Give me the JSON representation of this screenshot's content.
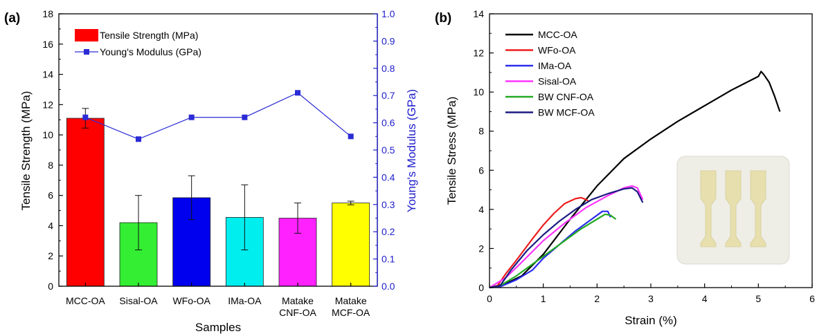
{
  "panels": {
    "a": "(a)",
    "b": "(b)"
  },
  "chart_data": [
    {
      "type": "bar",
      "categories": [
        "MCC-OA",
        "Sisal-OA",
        "WFo-OA",
        "IMa-OA",
        "Matake CNF-OA",
        "Matake MCF-OA"
      ],
      "category_lines": [
        [
          "MCC-OA"
        ],
        [
          "Sisal-OA"
        ],
        [
          "WFo-OA"
        ],
        [
          "IMa-OA"
        ],
        [
          "Matake",
          "CNF-OA"
        ],
        [
          "Matake",
          "MCF-OA"
        ]
      ],
      "xlabel": "Samples",
      "ylabel": "Tensile Strength (MPa)",
      "ylim": [
        0,
        18
      ],
      "yticks": [
        "0",
        "2",
        "4",
        "6",
        "8",
        "10",
        "12",
        "14",
        "16",
        "18"
      ],
      "y2label": "Young's Modulus (GPa)",
      "y2lim": [
        0,
        1.0
      ],
      "y2ticks": [
        "0.0",
        "0.1",
        "0.2",
        "0.3",
        "0.4",
        "0.5",
        "0.6",
        "0.7",
        "0.8",
        "0.9",
        "1.0"
      ],
      "series": [
        {
          "name": "Tensile Strength (MPa)",
          "kind": "bar",
          "values": [
            11.1,
            4.2,
            5.85,
            4.55,
            4.5,
            5.5
          ],
          "errors": [
            0.65,
            1.8,
            1.45,
            2.15,
            1.0,
            0.12
          ],
          "colors": [
            "#ff0000",
            "#33ee33",
            "#0000ee",
            "#00eeee",
            "#ff22ff",
            "#ffff00"
          ]
        },
        {
          "name": "Young's Modulus (GPa)",
          "kind": "line-marker",
          "axis": "right",
          "values": [
            0.62,
            0.54,
            0.62,
            0.62,
            0.71,
            0.55
          ],
          "color": "#2b2bd6"
        }
      ],
      "legend": "top-left"
    },
    {
      "type": "line",
      "xlabel": "Strain (%)",
      "ylabel": "Tensile Stress (MPa)",
      "xlim": [
        0,
        6
      ],
      "ylim": [
        0,
        14
      ],
      "xticks": [
        "0",
        "1",
        "2",
        "3",
        "4",
        "5",
        "6"
      ],
      "yticks": [
        "0",
        "2",
        "4",
        "6",
        "8",
        "10",
        "12",
        "14"
      ],
      "legend": "top-left",
      "inset": "photo of three dog-bone specimens",
      "series": [
        {
          "name": "MCC-OA",
          "color": "#000000",
          "x": [
            0,
            0.3,
            0.6,
            1.0,
            1.5,
            2.0,
            2.5,
            3.0,
            3.5,
            4.0,
            4.5,
            5.0,
            5.05,
            5.1,
            5.2,
            5.3,
            5.4
          ],
          "y": [
            0,
            0.2,
            0.6,
            1.7,
            3.5,
            5.2,
            6.6,
            7.6,
            8.5,
            9.3,
            10.1,
            10.8,
            11.05,
            10.9,
            10.5,
            9.8,
            9.0
          ]
        },
        {
          "name": "WFo-OA",
          "color": "#ee1c1c",
          "x": [
            0,
            0.15,
            0.3,
            0.5,
            0.8,
            1.0,
            1.2,
            1.4,
            1.6,
            1.7,
            1.8,
            1.85
          ],
          "y": [
            0,
            0.1,
            0.7,
            1.4,
            2.5,
            3.2,
            3.8,
            4.3,
            4.55,
            4.6,
            4.5,
            4.4
          ]
        },
        {
          "name": "IMa-OA",
          "color": "#2a2aee",
          "x": [
            0,
            0.2,
            0.5,
            0.8,
            1.0,
            1.3,
            1.6,
            1.9,
            2.1,
            2.2,
            2.25
          ],
          "y": [
            0,
            0.05,
            0.4,
            0.9,
            1.5,
            2.2,
            2.9,
            3.5,
            3.9,
            3.9,
            3.6
          ]
        },
        {
          "name": "Sisal-OA",
          "color": "#ff33ff",
          "x": [
            0,
            0.3,
            0.6,
            1.0,
            1.4,
            1.8,
            2.2,
            2.5,
            2.65,
            2.75,
            2.85
          ],
          "y": [
            0,
            0.5,
            1.3,
            2.4,
            3.3,
            4.1,
            4.7,
            5.1,
            5.2,
            5.1,
            4.5
          ]
        },
        {
          "name": "BW CNF-OA",
          "color": "#22aa22",
          "x": [
            0,
            0.2,
            0.5,
            0.8,
            1.1,
            1.4,
            1.7,
            2.0,
            2.15,
            2.25,
            2.35
          ],
          "y": [
            0,
            0.1,
            0.6,
            1.2,
            1.8,
            2.4,
            3.0,
            3.5,
            3.75,
            3.7,
            3.5
          ]
        },
        {
          "name": "BW MCF-OA",
          "color": "#1a1a80",
          "x": [
            0,
            0.2,
            0.4,
            0.7,
            1.0,
            1.3,
            1.6,
            1.9,
            2.2,
            2.5,
            2.65,
            2.75,
            2.85
          ],
          "y": [
            0,
            0.1,
            0.9,
            1.9,
            2.7,
            3.4,
            4.0,
            4.5,
            4.8,
            5.05,
            5.1,
            4.9,
            4.35
          ]
        }
      ]
    }
  ]
}
